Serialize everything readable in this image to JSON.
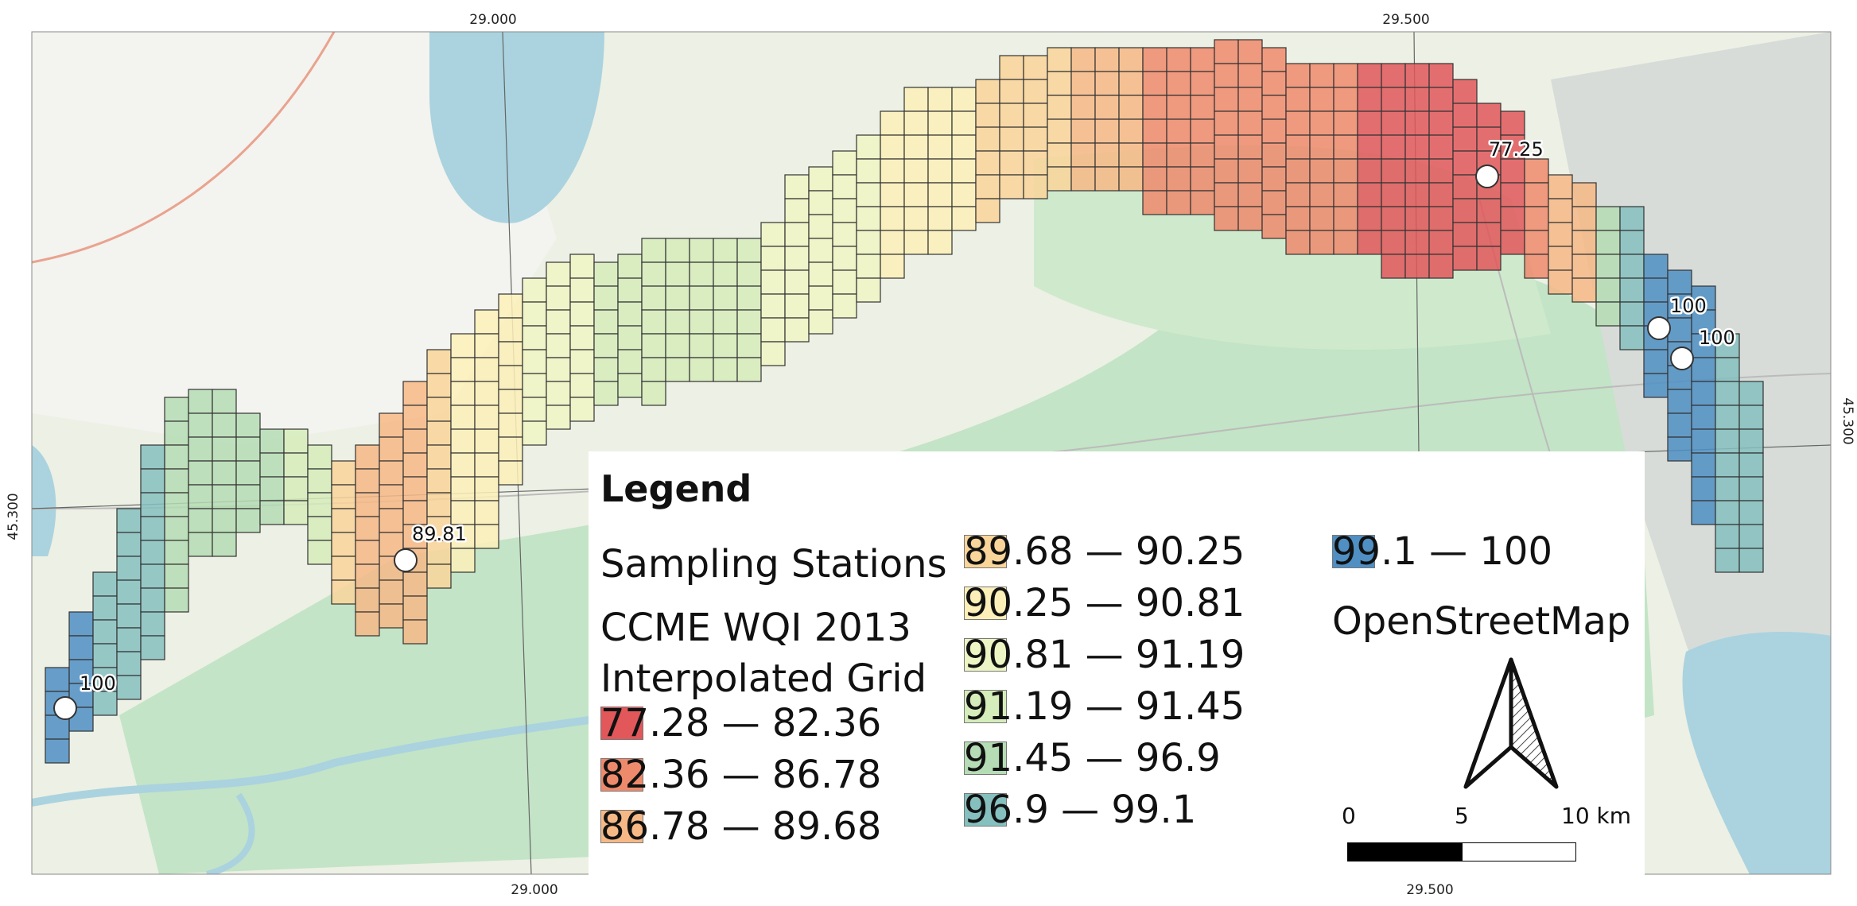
{
  "map": {
    "top_ticks": [
      "29.000",
      "29.500"
    ],
    "bottom_ticks": [
      "29.000",
      "29.500"
    ],
    "left_tick": "45.300",
    "right_tick": "45.300",
    "background_layer": "OpenStreetMap",
    "colors": {
      "land": "#ecefe3",
      "fields": "#f1f1ee",
      "water": "#aad3df",
      "wetland": "#bfe2c3",
      "grid_line": "#333333"
    }
  },
  "stations": [
    {
      "label": "77.25"
    },
    {
      "label": "100"
    },
    {
      "label": "100"
    },
    {
      "label": "89.81"
    },
    {
      "label": "100"
    }
  ],
  "legend": {
    "title": "Legend",
    "sampling_stations": "Sampling Stations",
    "grid_title_line1": "CCME WQI 2013",
    "grid_title_line2": "Interpolated Grid",
    "classes": [
      {
        "label": "77.28 — 82.36",
        "color": "#e1575a"
      },
      {
        "label": "82.36 — 86.78",
        "color": "#ee8a6c"
      },
      {
        "label": "86.78 — 89.68",
        "color": "#f6b986"
      },
      {
        "label": "89.68 — 90.25",
        "color": "#f9d59a"
      },
      {
        "label": "90.25 — 90.81",
        "color": "#fcf0b8"
      },
      {
        "label": "90.81 — 91.19",
        "color": "#eef5c4"
      },
      {
        "label": "91.19 — 91.45",
        "color": "#d5ecbb"
      },
      {
        "label": "91.45 — 96.9",
        "color": "#b5dcb4"
      },
      {
        "label": "96.9 — 99.1",
        "color": "#85c0bf"
      },
      {
        "label": "99.1 — 100",
        "color": "#4f8fc4"
      }
    ],
    "basemap_label": "OpenStreetMap",
    "scale": {
      "labels": [
        "0",
        "5",
        "10 km"
      ]
    }
  }
}
